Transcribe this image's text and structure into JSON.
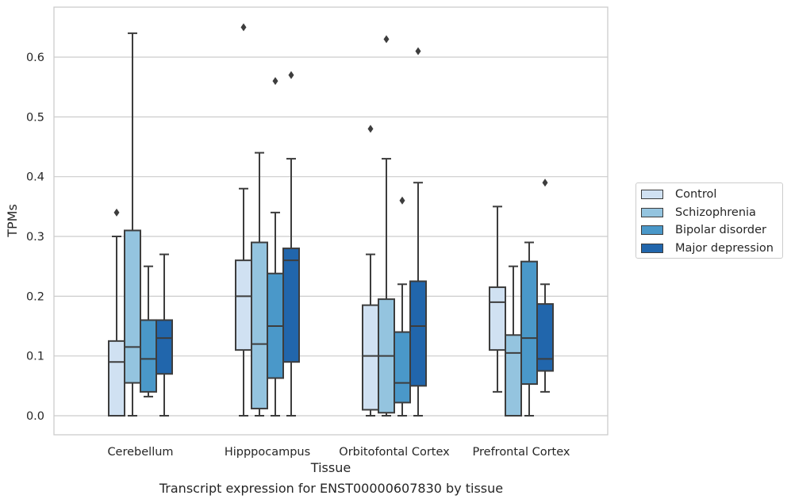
{
  "caption": "Transcript expression for ENST00000607830 by tissue",
  "chart_data": {
    "type": "box",
    "xlabel": "Tissue",
    "ylabel": "TPMs",
    "ylim": [
      -0.032,
      0.685
    ],
    "yticks": [
      "0.0",
      "0.1",
      "0.2",
      "0.3",
      "0.4",
      "0.5",
      "0.6"
    ],
    "ytick_values": [
      0.0,
      0.1,
      0.2,
      0.3,
      0.4,
      0.5,
      0.6
    ],
    "grid": true,
    "legend_position": "right",
    "categories": [
      "Cerebellum",
      "Hipppocampus",
      "Orbitofontal Cortex",
      "Prefrontal Cortex"
    ],
    "series": [
      {
        "name": "Control",
        "color": "#d0e1f2",
        "boxes": [
          {
            "whislo": 0.0,
            "q1": 0.0,
            "med": 0.09,
            "q3": 0.125,
            "whishi": 0.3,
            "fliers": [
              0.34
            ]
          },
          {
            "whislo": 0.0,
            "q1": 0.11,
            "med": 0.2,
            "q3": 0.26,
            "whishi": 0.38,
            "fliers": [
              0.65
            ]
          },
          {
            "whislo": 0.0,
            "q1": 0.01,
            "med": 0.1,
            "q3": 0.185,
            "whishi": 0.27,
            "fliers": [
              0.48
            ]
          },
          {
            "whislo": 0.04,
            "q1": 0.11,
            "med": 0.19,
            "q3": 0.215,
            "whishi": 0.35,
            "fliers": []
          }
        ]
      },
      {
        "name": "Schizophrenia",
        "color": "#94c4df",
        "boxes": [
          {
            "whislo": 0.0,
            "q1": 0.055,
            "med": 0.115,
            "q3": 0.31,
            "whishi": 0.64,
            "fliers": []
          },
          {
            "whislo": 0.0,
            "q1": 0.012,
            "med": 0.12,
            "q3": 0.29,
            "whishi": 0.44,
            "fliers": []
          },
          {
            "whislo": 0.0,
            "q1": 0.005,
            "med": 0.1,
            "q3": 0.195,
            "whishi": 0.43,
            "fliers": [
              0.63
            ]
          },
          {
            "whislo": 0.0,
            "q1": 0.0,
            "med": 0.105,
            "q3": 0.135,
            "whishi": 0.25,
            "fliers": []
          }
        ]
      },
      {
        "name": "Bipolar disorder",
        "color": "#4a98c9",
        "boxes": [
          {
            "whislo": 0.032,
            "q1": 0.04,
            "med": 0.095,
            "q3": 0.16,
            "whishi": 0.25,
            "fliers": []
          },
          {
            "whislo": 0.0,
            "q1": 0.063,
            "med": 0.15,
            "q3": 0.238,
            "whishi": 0.34,
            "fliers": [
              0.56
            ]
          },
          {
            "whislo": 0.0,
            "q1": 0.022,
            "med": 0.055,
            "q3": 0.14,
            "whishi": 0.22,
            "fliers": [
              0.36
            ]
          },
          {
            "whislo": 0.0,
            "q1": 0.053,
            "med": 0.13,
            "q3": 0.258,
            "whishi": 0.29,
            "fliers": []
          }
        ]
      },
      {
        "name": "Major depression",
        "color": "#2166ac",
        "boxes": [
          {
            "whislo": 0.0,
            "q1": 0.07,
            "med": 0.13,
            "q3": 0.16,
            "whishi": 0.27,
            "fliers": []
          },
          {
            "whislo": 0.0,
            "q1": 0.09,
            "med": 0.26,
            "q3": 0.28,
            "whishi": 0.43,
            "fliers": [
              0.57
            ]
          },
          {
            "whislo": 0.0,
            "q1": 0.05,
            "med": 0.15,
            "q3": 0.225,
            "whishi": 0.39,
            "fliers": [
              0.61
            ]
          },
          {
            "whislo": 0.04,
            "q1": 0.075,
            "med": 0.095,
            "q3": 0.187,
            "whishi": 0.22,
            "fliers": [
              0.39
            ]
          }
        ]
      }
    ]
  }
}
